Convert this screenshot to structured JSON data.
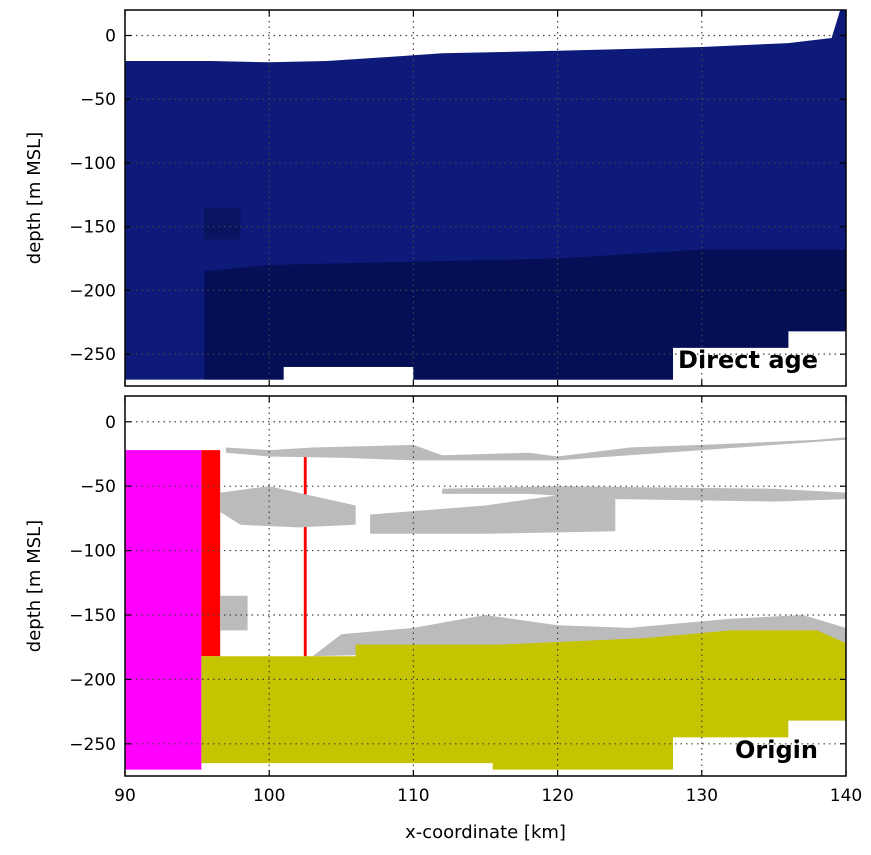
{
  "chart_data": [
    {
      "type": "heatmap",
      "title": "",
      "annotation": "Direct age",
      "xlabel": "",
      "ylabel": "depth [m MSL]",
      "xlim": [
        90,
        140
      ],
      "ylim": [
        -275,
        20
      ],
      "xticks": [],
      "yticks": [
        0,
        -50,
        -100,
        -150,
        -200,
        -250
      ],
      "grid": true,
      "colors": {
        "age_main": "#0d1a7a",
        "age_deep": "#050f55",
        "age_dark_patch": "#081460"
      },
      "regions": [
        {
          "name": "age_main",
          "color": "#0d1a7a",
          "polygon": [
            [
              90,
              -20
            ],
            [
              96,
              -20
            ],
            [
              100,
              -21
            ],
            [
              104,
              -20
            ],
            [
              108,
              -17
            ],
            [
              112,
              -14
            ],
            [
              120,
              -12
            ],
            [
              130,
              -9
            ],
            [
              136,
              -6
            ],
            [
              139,
              -2
            ],
            [
              139.6,
              20
            ],
            [
              140,
              20
            ],
            [
              140,
              -232
            ],
            [
              136,
              -232
            ],
            [
              136,
              -245
            ],
            [
              128,
              -245
            ],
            [
              128,
              -270
            ],
            [
              110,
              -270
            ],
            [
              110,
              -260
            ],
            [
              101,
              -260
            ],
            [
              101,
              -270
            ],
            [
              90,
              -270
            ]
          ]
        },
        {
          "name": "age_deep",
          "color": "#050f55",
          "polygon": [
            [
              95.5,
              -185
            ],
            [
              100,
              -180
            ],
            [
              120,
              -175
            ],
            [
              130,
              -168
            ],
            [
              140,
              -168
            ],
            [
              140,
              -232
            ],
            [
              136,
              -232
            ],
            [
              136,
              -245
            ],
            [
              128,
              -245
            ],
            [
              128,
              -270
            ],
            [
              110,
              -270
            ],
            [
              110,
              -260
            ],
            [
              101,
              -260
            ],
            [
              101,
              -270
            ],
            [
              95.5,
              -270
            ]
          ]
        },
        {
          "name": "age_dark_patch",
          "color": "#081460",
          "polygon": [
            [
              95.5,
              -135
            ],
            [
              98,
              -135
            ],
            [
              98,
              -160
            ],
            [
              95.5,
              -160
            ]
          ]
        }
      ]
    },
    {
      "type": "heatmap",
      "title": "",
      "annotation": "Origin",
      "xlabel": "x-coordinate [km]",
      "ylabel": "depth [m MSL]",
      "xlim": [
        90,
        140
      ],
      "ylim": [
        -275,
        20
      ],
      "xticks": [
        90,
        100,
        110,
        120,
        130,
        140
      ],
      "yticks": [
        0,
        -50,
        -100,
        -150,
        -200,
        -250
      ],
      "grid": true,
      "colors": {
        "magenta": "#ff00ff",
        "red": "#ff0000",
        "gray": "#bbbbbb",
        "olive": "#c5c400"
      },
      "regions": [
        {
          "name": "magenta",
          "color": "#ff00ff",
          "polygon": [
            [
              90,
              -22
            ],
            [
              95.3,
              -22
            ],
            [
              95.3,
              -270
            ],
            [
              90,
              -270
            ]
          ]
        },
        {
          "name": "red",
          "color": "#ff0000",
          "polygon": [
            [
              95.3,
              -22
            ],
            [
              96.6,
              -22
            ],
            [
              96.6,
              -182
            ],
            [
              95.3,
              -182
            ]
          ]
        },
        {
          "name": "red_line",
          "color": "#ff0000",
          "polygon": [
            [
              102.4,
              -22
            ],
            [
              102.6,
              -22
            ],
            [
              102.6,
              -182
            ],
            [
              102.4,
              -182
            ]
          ]
        },
        {
          "name": "gray_top",
          "color": "#bbbbbb",
          "polygon": [
            [
              97,
              -20
            ],
            [
              100,
              -22
            ],
            [
              103,
              -20
            ],
            [
              110,
              -18
            ],
            [
              112,
              -26
            ],
            [
              118,
              -24
            ],
            [
              120,
              -27
            ],
            [
              125,
              -20
            ],
            [
              130,
              -18
            ],
            [
              138,
              -14
            ],
            [
              140,
              -12
            ],
            [
              140,
              -14
            ],
            [
              130,
              -22
            ],
            [
              120,
              -30
            ],
            [
              110,
              -30
            ],
            [
              105,
              -28
            ],
            [
              100,
              -27
            ],
            [
              97,
              -24
            ]
          ]
        },
        {
          "name": "gray_band1",
          "color": "#bbbbbb",
          "polygon": [
            [
              96.6,
              -55
            ],
            [
              100,
              -50
            ],
            [
              104,
              -60
            ],
            [
              106,
              -65
            ],
            [
              106,
              -80
            ],
            [
              102,
              -82
            ],
            [
              98,
              -80
            ],
            [
              96.6,
              -70
            ]
          ]
        },
        {
          "name": "gray_band2",
          "color": "#bbbbbb",
          "polygon": [
            [
              107,
              -72
            ],
            [
              115,
              -65
            ],
            [
              120,
              -57
            ],
            [
              124,
              -60
            ],
            [
              124,
              -85
            ],
            [
              115,
              -87
            ],
            [
              107,
              -87
            ]
          ]
        },
        {
          "name": "gray_band3",
          "color": "#bbbbbb",
          "polygon": [
            [
              112,
              -52
            ],
            [
              120,
              -50
            ],
            [
              135,
              -52
            ],
            [
              140,
              -55
            ],
            [
              140,
              -60
            ],
            [
              135,
              -62
            ],
            [
              124,
              -60
            ],
            [
              118,
              -56
            ],
            [
              112,
              -56
            ]
          ]
        },
        {
          "name": "gray_small",
          "color": "#bbbbbb",
          "polygon": [
            [
              96.6,
              -135
            ],
            [
              98.5,
              -135
            ],
            [
              98.5,
              -162
            ],
            [
              96.6,
              -162
            ]
          ]
        },
        {
          "name": "gray_mid",
          "color": "#bbbbbb",
          "polygon": [
            [
              105,
              -165
            ],
            [
              110,
              -160
            ],
            [
              115,
              -150
            ],
            [
              120,
              -158
            ],
            [
              125,
              -160
            ],
            [
              132,
              -153
            ],
            [
              137,
              -150
            ],
            [
              140,
              -160
            ],
            [
              140,
              -172
            ],
            [
              103,
              -182
            ]
          ]
        },
        {
          "name": "olive",
          "color": "#c5c400",
          "polygon": [
            [
              95.3,
              -182
            ],
            [
              106,
              -182
            ],
            [
              106,
              -173
            ],
            [
              116,
              -173
            ],
            [
              126,
              -168
            ],
            [
              132,
              -162
            ],
            [
              138,
              -162
            ],
            [
              140,
              -172
            ],
            [
              140,
              -232
            ],
            [
              136,
              -232
            ],
            [
              136,
              -245
            ],
            [
              128,
              -245
            ],
            [
              128,
              -270
            ],
            [
              115.5,
              -270
            ],
            [
              115.5,
              -265
            ],
            [
              95.3,
              -265
            ]
          ]
        }
      ]
    }
  ]
}
